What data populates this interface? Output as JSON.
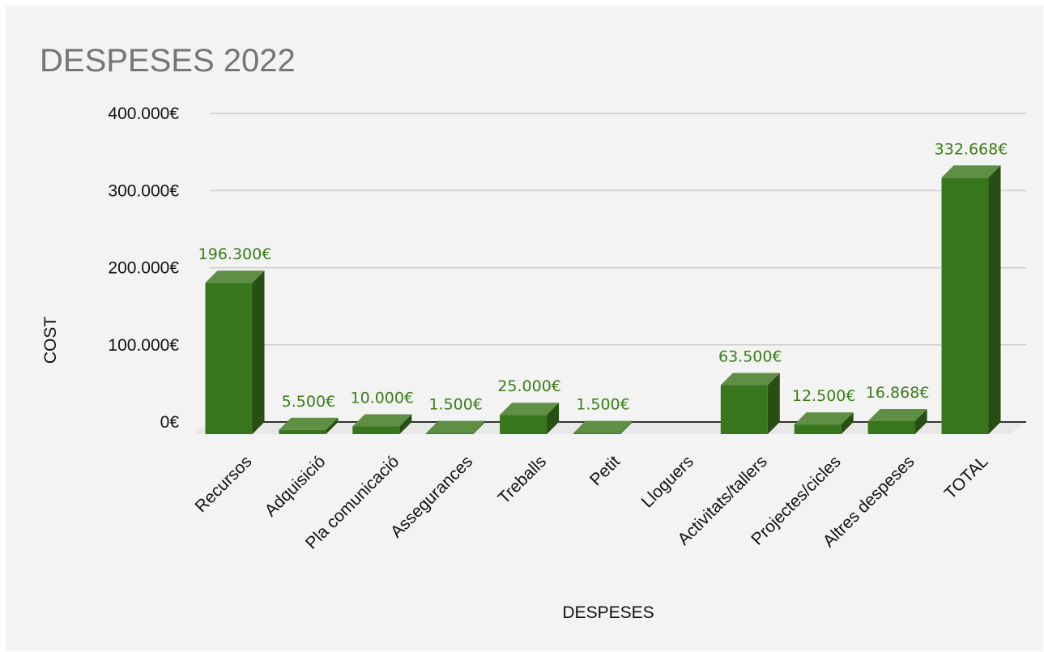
{
  "chart_data": {
    "type": "bar",
    "title": "DESPESES 2022",
    "xlabel": "DESPESES",
    "ylabel": "COST",
    "ylim": [
      0,
      400000
    ],
    "y_ticks": [
      {
        "value": 0,
        "label": "0€"
      },
      {
        "value": 100000,
        "label": "100.000€"
      },
      {
        "value": 200000,
        "label": "200.000€"
      },
      {
        "value": 300000,
        "label": "300.000€"
      },
      {
        "value": 400000,
        "label": "400.000€"
      }
    ],
    "categories": [
      "Recursos",
      "Adquisició",
      "Pla comunicació",
      "Assegurances",
      "Treballs",
      "Petit",
      "Lloguers",
      "Activitats/tallers",
      "Projectes/cicles",
      "Altres despeses",
      "TOTAL"
    ],
    "values": [
      196300,
      5500,
      10000,
      1500,
      25000,
      1500,
      0,
      63500,
      12500,
      16868,
      332668
    ],
    "data_labels": [
      "196.300€",
      "5.500€",
      "10.000€",
      "1.500€",
      "25.000€",
      "1.500€",
      "",
      "63.500€",
      "12.500€",
      "16.868€",
      "332.668€"
    ],
    "grid": true,
    "style": "3d-bar",
    "colors": {
      "bar_front": "#38761d",
      "bar_top": "#5e8f45",
      "bar_side": "#274e13",
      "data_label": "#3a7d18",
      "grid": "#cccccc",
      "baseline": "#333333",
      "floor": "#e8e8e8",
      "title": "#757575",
      "background": "#f3f3f3"
    }
  }
}
